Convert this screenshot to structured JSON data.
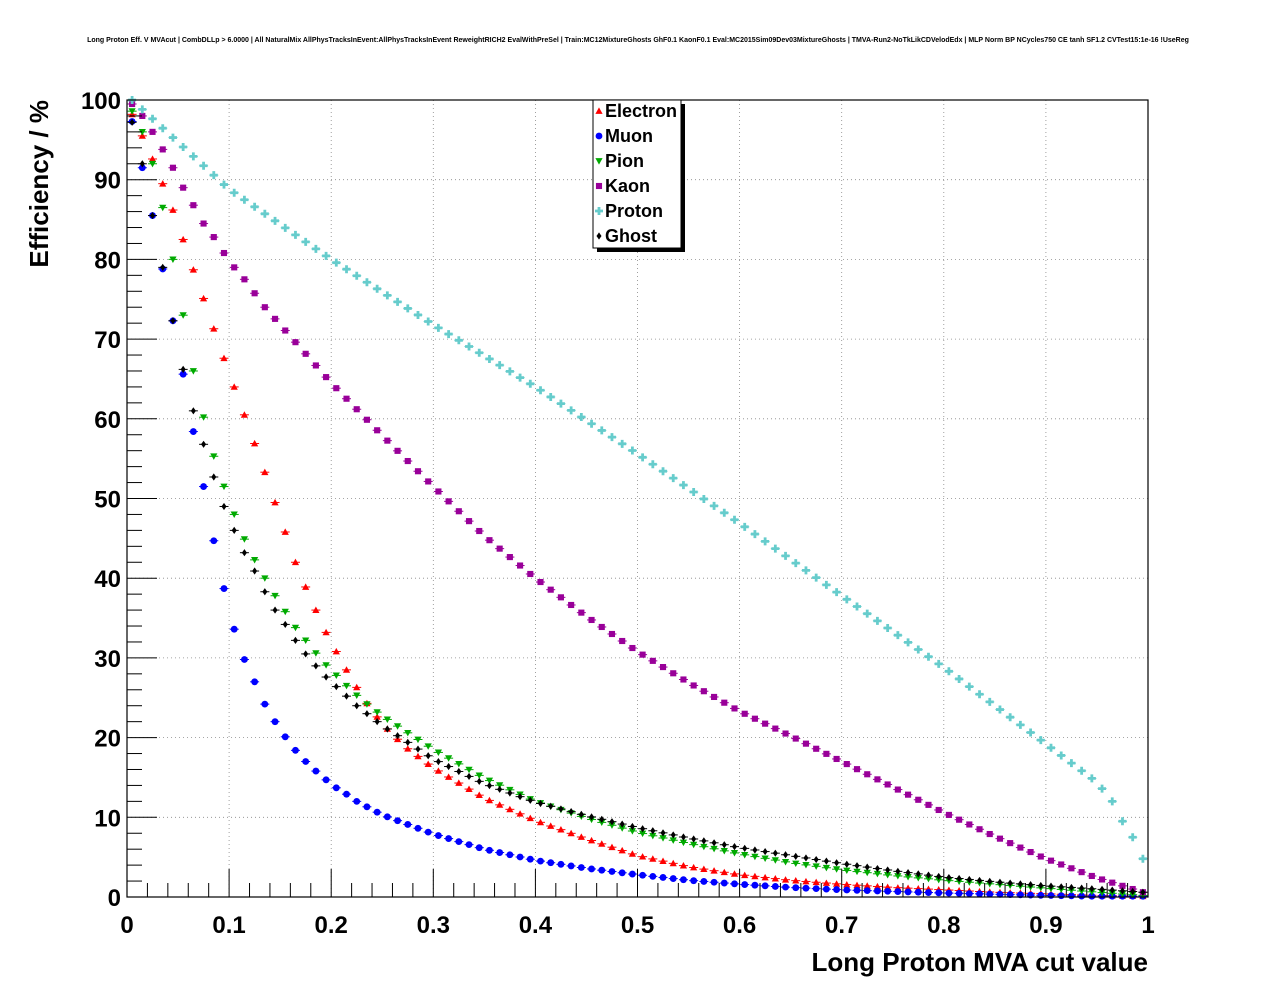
{
  "chart_data": {
    "type": "scatter",
    "title": "Long Proton Eff. V MVAcut | CombDLLp > 6.0000 | All NaturalMix AllPhysTracksInEvent:AllPhysTracksInEvent ReweightRICH2 EvalWithPreSel | Train:MC12MixtureGhosts GhF0.1 KaonF0.1 Eval:MC2015Sim09Dev03MixtureGhosts | TMVA-Run2-NoTkLikCDVelodEdx | MLP Norm BP NCycles750 CE tanh SF1.2 CVTest15:1e-16 !UseReg",
    "xlabel": "Long Proton MVA cut value",
    "ylabel": "Efficiency / %",
    "xlim": [
      0,
      1
    ],
    "ylim": [
      0,
      100
    ],
    "xticks": [
      "0",
      "0.1",
      "0.2",
      "0.3",
      "0.4",
      "0.5",
      "0.6",
      "0.7",
      "0.8",
      "0.9",
      "1"
    ],
    "yticks": [
      "0",
      "10",
      "20",
      "30",
      "40",
      "50",
      "60",
      "70",
      "80",
      "90",
      "100"
    ],
    "grid": true,
    "legend_position": "top-center",
    "x_start": 0.005,
    "x_step": 0.01,
    "series": [
      {
        "name": "Electron",
        "color": "#ff0000",
        "marker": "triangle-up",
        "anchors": [
          [
            0.005,
            98.2
          ],
          [
            0.015,
            95.5
          ],
          [
            0.025,
            92.6
          ],
          [
            0.035,
            89.5
          ],
          [
            0.045,
            86.2
          ],
          [
            0.055,
            82.5
          ],
          [
            0.065,
            78.7
          ],
          [
            0.075,
            75.1
          ],
          [
            0.085,
            71.3
          ],
          [
            0.095,
            67.6
          ],
          [
            0.105,
            64.0
          ],
          [
            0.115,
            60.5
          ],
          [
            0.125,
            56.9
          ],
          [
            0.135,
            53.3
          ],
          [
            0.145,
            49.5
          ],
          [
            0.155,
            45.8
          ],
          [
            0.165,
            42.0
          ],
          [
            0.175,
            38.9
          ],
          [
            0.185,
            36.0
          ],
          [
            0.195,
            33.2
          ],
          [
            0.205,
            30.8
          ],
          [
            0.215,
            28.5
          ],
          [
            0.225,
            26.3
          ],
          [
            0.235,
            24.3
          ],
          [
            0.245,
            22.6
          ],
          [
            0.255,
            21.1
          ],
          [
            0.265,
            19.8
          ],
          [
            0.275,
            18.6
          ],
          [
            0.3,
            16.2
          ],
          [
            0.35,
            12.4
          ],
          [
            0.4,
            9.6
          ],
          [
            0.45,
            7.3
          ],
          [
            0.5,
            5.2
          ],
          [
            0.55,
            3.8
          ],
          [
            0.6,
            2.8
          ],
          [
            0.65,
            2.1
          ],
          [
            0.7,
            1.6
          ],
          [
            0.75,
            1.2
          ],
          [
            0.8,
            0.9
          ],
          [
            0.85,
            0.6
          ],
          [
            0.9,
            0.4
          ],
          [
            0.95,
            0.2
          ],
          [
            0.995,
            0.1
          ]
        ]
      },
      {
        "name": "Muon",
        "color": "#0000ff",
        "marker": "circle",
        "anchors": [
          [
            0.005,
            97.3
          ],
          [
            0.015,
            91.5
          ],
          [
            0.025,
            85.5
          ],
          [
            0.035,
            78.8
          ],
          [
            0.045,
            72.3
          ],
          [
            0.055,
            65.6
          ],
          [
            0.065,
            58.4
          ],
          [
            0.075,
            51.5
          ],
          [
            0.085,
            44.7
          ],
          [
            0.095,
            38.7
          ],
          [
            0.105,
            33.6
          ],
          [
            0.115,
            29.8
          ],
          [
            0.125,
            27.0
          ],
          [
            0.135,
            24.2
          ],
          [
            0.145,
            22.0
          ],
          [
            0.155,
            20.1
          ],
          [
            0.165,
            18.4
          ],
          [
            0.175,
            17.0
          ],
          [
            0.185,
            15.8
          ],
          [
            0.195,
            14.7
          ],
          [
            0.205,
            13.7
          ],
          [
            0.215,
            12.9
          ],
          [
            0.225,
            12.0
          ],
          [
            0.25,
            10.3
          ],
          [
            0.3,
            7.9
          ],
          [
            0.35,
            6.0
          ],
          [
            0.4,
            4.6
          ],
          [
            0.45,
            3.6
          ],
          [
            0.5,
            2.8
          ],
          [
            0.55,
            2.1
          ],
          [
            0.6,
            1.6
          ],
          [
            0.65,
            1.2
          ],
          [
            0.7,
            0.9
          ],
          [
            0.8,
            0.5
          ],
          [
            0.9,
            0.2
          ],
          [
            0.945,
            0.1
          ]
        ]
      },
      {
        "name": "Pion",
        "color": "#00aa00",
        "marker": "triangle-down",
        "anchors": [
          [
            0.005,
            98.6
          ],
          [
            0.015,
            96.0
          ],
          [
            0.025,
            92.0
          ],
          [
            0.035,
            86.5
          ],
          [
            0.045,
            80.0
          ],
          [
            0.055,
            73.0
          ],
          [
            0.065,
            66.0
          ],
          [
            0.075,
            60.2
          ],
          [
            0.085,
            55.3
          ],
          [
            0.095,
            51.5
          ],
          [
            0.105,
            48.0
          ],
          [
            0.115,
            44.9
          ],
          [
            0.125,
            42.3
          ],
          [
            0.135,
            40.0
          ],
          [
            0.145,
            37.8
          ],
          [
            0.155,
            35.8
          ],
          [
            0.165,
            33.8
          ],
          [
            0.175,
            32.2
          ],
          [
            0.185,
            30.6
          ],
          [
            0.195,
            29.1
          ],
          [
            0.205,
            27.8
          ],
          [
            0.215,
            26.5
          ],
          [
            0.225,
            25.3
          ],
          [
            0.235,
            24.2
          ],
          [
            0.25,
            22.7
          ],
          [
            0.3,
            18.5
          ],
          [
            0.35,
            14.9
          ],
          [
            0.4,
            12.0
          ],
          [
            0.45,
            9.9
          ],
          [
            0.5,
            8.1
          ],
          [
            0.55,
            6.7
          ],
          [
            0.6,
            5.4
          ],
          [
            0.65,
            4.3
          ],
          [
            0.7,
            3.4
          ],
          [
            0.75,
            2.7
          ],
          [
            0.8,
            2.1
          ],
          [
            0.85,
            1.6
          ],
          [
            0.9,
            1.1
          ],
          [
            0.95,
            0.6
          ],
          [
            0.995,
            0.2
          ]
        ]
      },
      {
        "name": "Kaon",
        "color": "#990099",
        "marker": "square",
        "anchors": [
          [
            0.005,
            99.5
          ],
          [
            0.015,
            98.0
          ],
          [
            0.025,
            96.0
          ],
          [
            0.035,
            93.8
          ],
          [
            0.045,
            91.5
          ],
          [
            0.055,
            89.0
          ],
          [
            0.065,
            86.8
          ],
          [
            0.075,
            84.5
          ],
          [
            0.085,
            82.8
          ],
          [
            0.095,
            80.8
          ],
          [
            0.105,
            79.0
          ],
          [
            0.115,
            77.5
          ],
          [
            0.135,
            74.0
          ],
          [
            0.2,
            64.5
          ],
          [
            0.25,
            57.9
          ],
          [
            0.3,
            51.5
          ],
          [
            0.35,
            45.3
          ],
          [
            0.4,
            40.0
          ],
          [
            0.45,
            35.2
          ],
          [
            0.5,
            30.8
          ],
          [
            0.55,
            26.9
          ],
          [
            0.6,
            23.3
          ],
          [
            0.65,
            20.2
          ],
          [
            0.7,
            17.0
          ],
          [
            0.75,
            13.8
          ],
          [
            0.8,
            10.6
          ],
          [
            0.85,
            7.6
          ],
          [
            0.9,
            4.8
          ],
          [
            0.95,
            2.4
          ],
          [
            0.995,
            0.6
          ]
        ]
      },
      {
        "name": "Proton",
        "color": "#66cccc",
        "marker": "cross",
        "anchors": [
          [
            0.005,
            100.0
          ],
          [
            0.1,
            88.8
          ],
          [
            0.2,
            80.0
          ],
          [
            0.3,
            71.8
          ],
          [
            0.4,
            64.0
          ],
          [
            0.5,
            55.6
          ],
          [
            0.6,
            46.9
          ],
          [
            0.7,
            37.8
          ],
          [
            0.8,
            28.8
          ],
          [
            0.9,
            19.2
          ],
          [
            0.95,
            14.4
          ],
          [
            0.965,
            12.0
          ],
          [
            0.975,
            9.5
          ],
          [
            0.985,
            7.5
          ],
          [
            0.995,
            4.8
          ]
        ]
      },
      {
        "name": "Ghost",
        "color": "#000000",
        "marker": "diamond",
        "anchors": [
          [
            0.005,
            97.2
          ],
          [
            0.015,
            92.0
          ],
          [
            0.025,
            85.5
          ],
          [
            0.035,
            79.0
          ],
          [
            0.045,
            72.3
          ],
          [
            0.055,
            66.2
          ],
          [
            0.065,
            61.0
          ],
          [
            0.075,
            56.8
          ],
          [
            0.085,
            52.7
          ],
          [
            0.095,
            49.0
          ],
          [
            0.105,
            46.0
          ],
          [
            0.115,
            43.2
          ],
          [
            0.125,
            40.9
          ],
          [
            0.135,
            38.3
          ],
          [
            0.145,
            36.0
          ],
          [
            0.155,
            34.2
          ],
          [
            0.165,
            32.2
          ],
          [
            0.175,
            30.5
          ],
          [
            0.185,
            29.0
          ],
          [
            0.195,
            27.6
          ],
          [
            0.205,
            26.4
          ],
          [
            0.215,
            25.2
          ],
          [
            0.225,
            24.0
          ],
          [
            0.25,
            21.5
          ],
          [
            0.3,
            17.3
          ],
          [
            0.35,
            14.2
          ],
          [
            0.4,
            11.9
          ],
          [
            0.45,
            10.2
          ],
          [
            0.5,
            8.7
          ],
          [
            0.55,
            7.4
          ],
          [
            0.6,
            6.2
          ],
          [
            0.65,
            5.2
          ],
          [
            0.7,
            4.2
          ],
          [
            0.75,
            3.3
          ],
          [
            0.8,
            2.5
          ],
          [
            0.85,
            1.9
          ],
          [
            0.9,
            1.4
          ],
          [
            0.95,
            1.0
          ],
          [
            0.995,
            0.6
          ]
        ]
      }
    ]
  }
}
